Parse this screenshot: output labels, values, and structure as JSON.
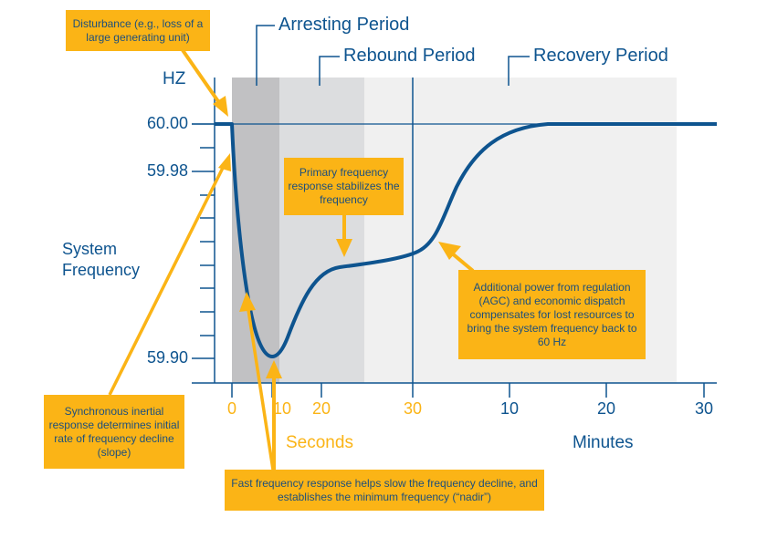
{
  "colors": {
    "line": "#0e548f",
    "accent": "#fbb416",
    "arresting_shade": "#c1c1c3",
    "rebound_shade": "#dcdddf",
    "recovery_shade": "#f0f0f0"
  },
  "periods": {
    "arresting": "Arresting Period",
    "rebound": "Rebound Period",
    "recovery": "Recovery Period"
  },
  "y_axis": {
    "unit": "HZ",
    "title": "System Frequency",
    "title_line1": "System",
    "title_line2": "Frequency",
    "ticks": [
      "60.00",
      "59.98",
      "59.90"
    ]
  },
  "x_axis": {
    "seconds_ticks": [
      "0",
      "10",
      "20",
      "30"
    ],
    "minutes_ticks": [
      "10",
      "20",
      "30"
    ],
    "seconds_label": "Seconds",
    "minutes_label": "Minutes"
  },
  "callouts": {
    "disturbance": "Disturbance (e.g., loss of a large generating unit)",
    "primary": "Primary frequency response stabilizes the frequency",
    "additional": "Additional power from regulation (AGC) and economic dispatch compensates for lost resources to bring the system frequency back to 60 Hz",
    "synchronous": "Synchronous inertial response determines initial rate of frequency decline (slope)",
    "fast": "Fast frequency response helps slow the frequency decline, and establishes the minimum frequency (“nadir”)"
  }
}
